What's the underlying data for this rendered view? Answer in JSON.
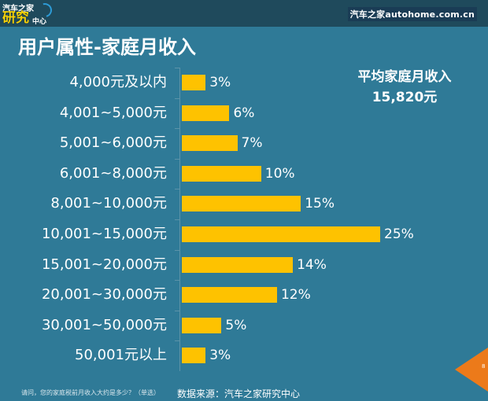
{
  "header": {
    "logo_line1": "汽车之家",
    "logo_line2": "研究",
    "logo_line3": "中心",
    "brand": "汽车之家autohome.com.cn"
  },
  "title": "用户属性-家庭月收入",
  "summary": {
    "label": "平均家庭月收入",
    "value": "15,820元"
  },
  "colors": {
    "background": "#2f7a97",
    "topbar": "#1f4a5c",
    "bar": "#fec200",
    "page_tab": "#ec7a1a"
  },
  "chart_data": {
    "type": "bar",
    "orientation": "horizontal",
    "title": "用户属性-家庭月收入",
    "xlabel": "",
    "ylabel": "",
    "categories": [
      "4,000元及以内",
      "4,001~5,000元",
      "5,001~6,000元",
      "6,001~8,000元",
      "8,001~10,000元",
      "10,001~15,000元",
      "15,001~20,000元",
      "20,001~30,000元",
      "30,001~50,000元",
      "50,001元以上"
    ],
    "values": [
      3,
      6,
      7,
      10,
      15,
      25,
      14,
      12,
      5,
      3
    ],
    "value_labels": [
      "3%",
      "6%",
      "7%",
      "10%",
      "15%",
      "25%",
      "14%",
      "12%",
      "5%",
      "3%"
    ],
    "unit": "%",
    "grid": false,
    "legend": "none",
    "annotation": "平均家庭月收入 15,820元"
  },
  "footer": {
    "question": "请问，您的家庭税前月收入大约是多少？（单选）",
    "source": "数据来源：汽车之家研究中心",
    "page_number": "8"
  }
}
